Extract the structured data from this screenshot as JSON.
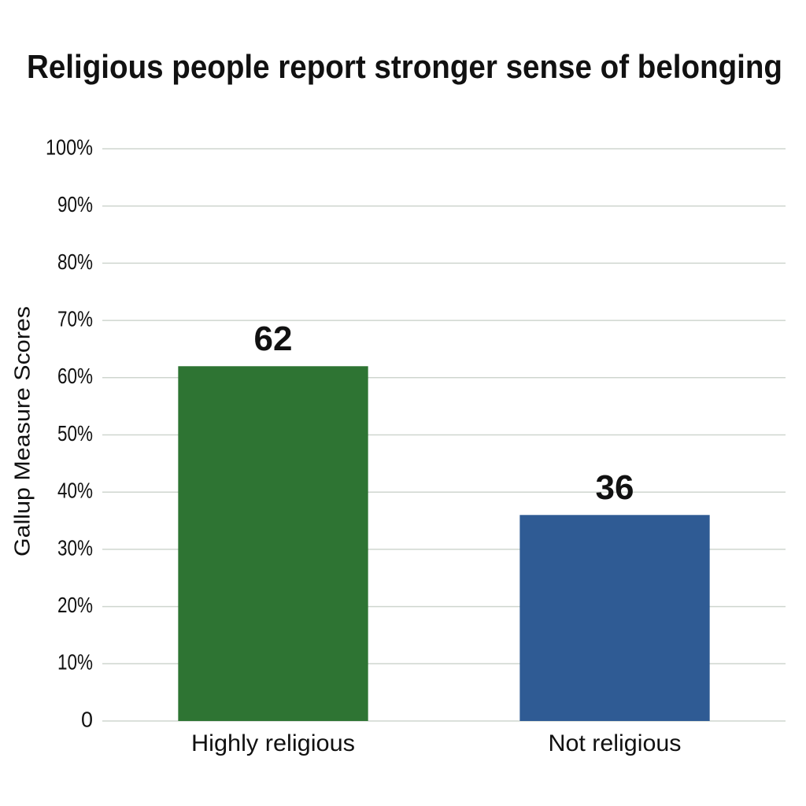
{
  "chart_data": {
    "type": "bar",
    "title": "Religious people report stronger sense of belonging",
    "y_label": "Gallup Measure Scores",
    "categories": [
      "Highly religious",
      "Not religious"
    ],
    "values": [
      62,
      36
    ],
    "colors": [
      "#2e7433",
      "#2f5b94"
    ],
    "ylim": [
      0,
      100
    ],
    "yticks": [
      0,
      {
        "value": 10,
        "label": "10%"
      },
      {
        "value": 20,
        "label": "20%"
      },
      {
        "value": 30,
        "label": "30%"
      },
      {
        "value": 40,
        "label": "40%"
      },
      {
        "value": 50,
        "label": "50%"
      },
      {
        "value": 60,
        "label": "60%"
      },
      {
        "value": 70,
        "label": "70%"
      },
      {
        "value": 80,
        "label": "80%"
      },
      {
        "value": 90,
        "label": "90%"
      },
      {
        "value": 100,
        "label": "100%"
      }
    ],
    "grid": true
  }
}
